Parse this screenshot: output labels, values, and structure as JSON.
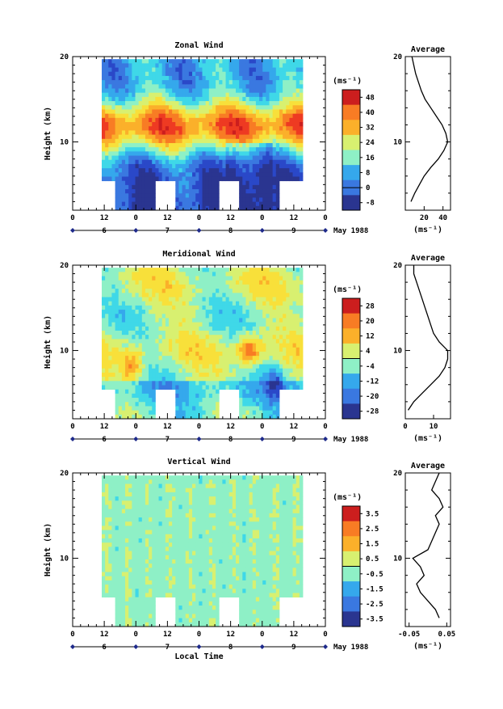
{
  "chart_data": [
    {
      "type": "heatmap",
      "title": "Zonal Wind",
      "ylabel": "Height (km)",
      "xlabel": "",
      "unit_label": "(ms⁻¹)",
      "ylim": [
        2,
        20
      ],
      "y_ticks": [
        "10",
        "20"
      ],
      "x_ticks": [
        "0",
        "12",
        "0",
        "12",
        "0",
        "12",
        "0",
        "12",
        "0"
      ],
      "date_ticks": [
        "6",
        "7",
        "8",
        "9"
      ],
      "month_label": "May 1988",
      "colorbar_ticks": [
        "48",
        "40",
        "32",
        "24",
        "16",
        "8",
        "0",
        "-8"
      ],
      "colorbar_range": [
        -12,
        52
      ],
      "contour_value": 0,
      "pattern": "jet",
      "average": {
        "title": "Average",
        "xlabel": "(ms⁻¹)",
        "x_ticks": [
          "20",
          "40"
        ],
        "xlim": [
          0,
          48
        ],
        "y_ticks": [
          "10",
          "20"
        ],
        "height": [
          3,
          4,
          5,
          6,
          7,
          8,
          9,
          10,
          11,
          12,
          13,
          14,
          15,
          16,
          17,
          18,
          19,
          20
        ],
        "value": [
          6,
          10,
          15,
          20,
          27,
          35,
          41,
          45,
          43,
          39,
          33,
          27,
          21,
          17,
          14,
          11,
          9,
          7
        ]
      }
    },
    {
      "type": "heatmap",
      "title": "Meridional Wind",
      "ylabel": "Height (km)",
      "xlabel": "",
      "unit_label": "(ms⁻¹)",
      "ylim": [
        2,
        20
      ],
      "y_ticks": [
        "10",
        "20"
      ],
      "x_ticks": [
        "0",
        "12",
        "0",
        "12",
        "0",
        "12",
        "0",
        "12",
        "0"
      ],
      "date_ticks": [
        "6",
        "7",
        "8",
        "9"
      ],
      "month_label": "May 1988",
      "colorbar_ticks": [
        "28",
        "20",
        "12",
        "4",
        "-4",
        "-12",
        "-20",
        "-28"
      ],
      "colorbar_range": [
        -32,
        32
      ],
      "contour_value": 0,
      "pattern": "meridional",
      "average": {
        "title": "Average",
        "xlabel": "(ms⁻¹)",
        "x_ticks": [
          "0",
          "10"
        ],
        "xlim": [
          0,
          16
        ],
        "y_ticks": [
          "10",
          "20"
        ],
        "height": [
          3,
          4,
          5,
          6,
          7,
          8,
          9,
          10,
          11,
          12,
          13,
          14,
          15,
          16,
          17,
          18,
          19,
          20
        ],
        "value": [
          1,
          3,
          6,
          9,
          12,
          14,
          15,
          15,
          12,
          10,
          9,
          8,
          7,
          6,
          5,
          4,
          3,
          3
        ]
      }
    },
    {
      "type": "heatmap",
      "title": "Vertical Wind",
      "ylabel": "Height (km)",
      "xlabel": "Local Time",
      "unit_label": "(ms⁻¹)",
      "ylim": [
        2,
        20
      ],
      "y_ticks": [
        "10",
        "20"
      ],
      "x_ticks": [
        "0",
        "12",
        "0",
        "12",
        "0",
        "12",
        "0",
        "12",
        "0"
      ],
      "date_ticks": [
        "6",
        "7",
        "8",
        "9"
      ],
      "month_label": "May 1988",
      "colorbar_ticks": [
        "3.5",
        "2.5",
        "1.5",
        "0.5",
        "-0.5",
        "-1.5",
        "-2.5",
        "-3.5"
      ],
      "colorbar_range": [
        -4,
        4
      ],
      "contour_value": 0,
      "pattern": "vertical",
      "average": {
        "title": "Average",
        "xlabel": "(ms⁻¹)",
        "x_ticks": [
          "-0.05",
          "0.05"
        ],
        "xlim": [
          -0.06,
          0.06
        ],
        "y_ticks": [
          "10",
          "20"
        ],
        "height": [
          3,
          4,
          5,
          6,
          7,
          8,
          9,
          10,
          11,
          12,
          13,
          14,
          15,
          16,
          17,
          18,
          19,
          20
        ],
        "value": [
          0.03,
          0.02,
          0.0,
          -0.02,
          -0.03,
          -0.01,
          -0.02,
          -0.04,
          0.0,
          0.01,
          0.02,
          0.03,
          0.02,
          0.04,
          0.03,
          0.01,
          0.02,
          0.03
        ]
      }
    }
  ]
}
